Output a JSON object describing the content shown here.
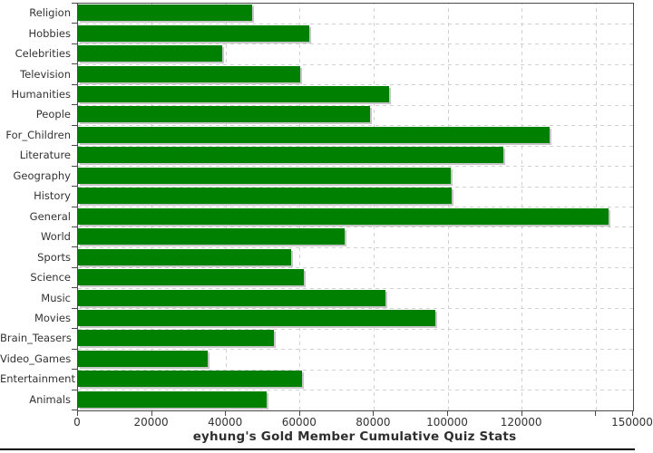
{
  "chart_data": {
    "type": "bar",
    "orientation": "horizontal",
    "title": "eyhung's Gold Member Cumulative Quiz Stats",
    "categories": [
      "Religion",
      "Hobbies",
      "Celebrities",
      "Television",
      "Humanities",
      "People",
      "For_Children",
      "Literature",
      "Geography",
      "History",
      "General",
      "World",
      "Sports",
      "Science",
      "Music",
      "Movies",
      "Brain_Teasers",
      "Video_Games",
      "Entertainment",
      "Animals"
    ],
    "values": [
      47000,
      62400,
      39000,
      60000,
      84000,
      79000,
      127500,
      115000,
      100700,
      100900,
      143400,
      72000,
      57500,
      61000,
      83000,
      96500,
      53000,
      35000,
      60500,
      51000
    ],
    "xlim": [
      0,
      150000
    ],
    "x_tick_interval": 20000,
    "x_tick_labels": [
      "0",
      "20000",
      "40000",
      "60000",
      "80000",
      "100000",
      "120000"
    ],
    "unlabeled_tick_value": 140000,
    "edge_tick_label": "150000",
    "grid": true,
    "legend": "none",
    "colors": {
      "bar": "#008000",
      "bar_shadow": "#c6c6c6",
      "gridline": "#ced2d6",
      "plot_border": "#4a4a4a",
      "text": "#333333"
    }
  }
}
